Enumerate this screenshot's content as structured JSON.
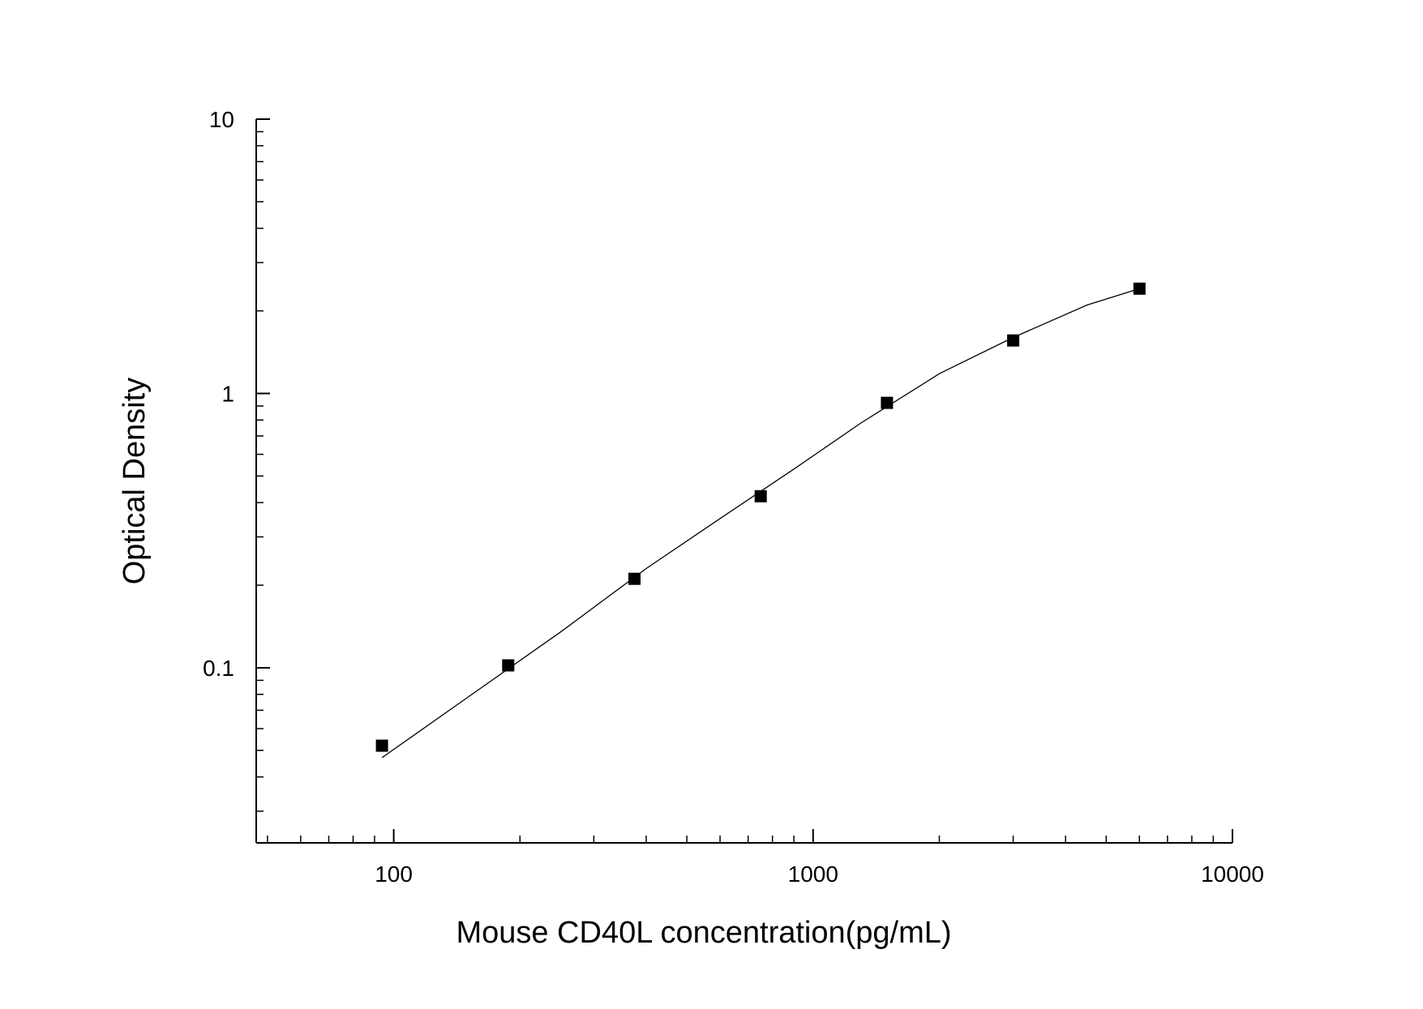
{
  "chart_data": {
    "type": "scatter",
    "title": "",
    "xlabel": "Mouse CD40L concentration(pg/mL)",
    "ylabel": "Optical Density",
    "x_scale": "log",
    "y_scale": "log",
    "xlim": [
      47,
      10000
    ],
    "ylim": [
      0.023,
      10
    ],
    "x_ticks": [
      {
        "value": 100,
        "label": "100"
      },
      {
        "value": 1000,
        "label": "1000"
      },
      {
        "value": 10000,
        "label": "10000"
      }
    ],
    "y_ticks": [
      {
        "value": 0.1,
        "label": "0.1"
      },
      {
        "value": 1,
        "label": "1"
      },
      {
        "value": 10,
        "label": "10"
      }
    ],
    "grid": false,
    "legend": "none",
    "series": [
      {
        "marker": "square",
        "color": "#000000",
        "x": [
          93.75,
          187.5,
          375,
          750,
          1500,
          3000,
          6000
        ],
        "y": [
          0.052,
          0.102,
          0.211,
          0.422,
          0.924,
          1.56,
          2.41
        ]
      }
    ],
    "fit_curve": {
      "color": "#000000",
      "x": [
        93.75,
        150,
        250,
        400,
        600,
        900,
        1300,
        2000,
        3000,
        4500,
        6000
      ],
      "y": [
        0.047,
        0.078,
        0.135,
        0.23,
        0.35,
        0.53,
        0.78,
        1.18,
        1.6,
        2.1,
        2.41
      ]
    }
  }
}
